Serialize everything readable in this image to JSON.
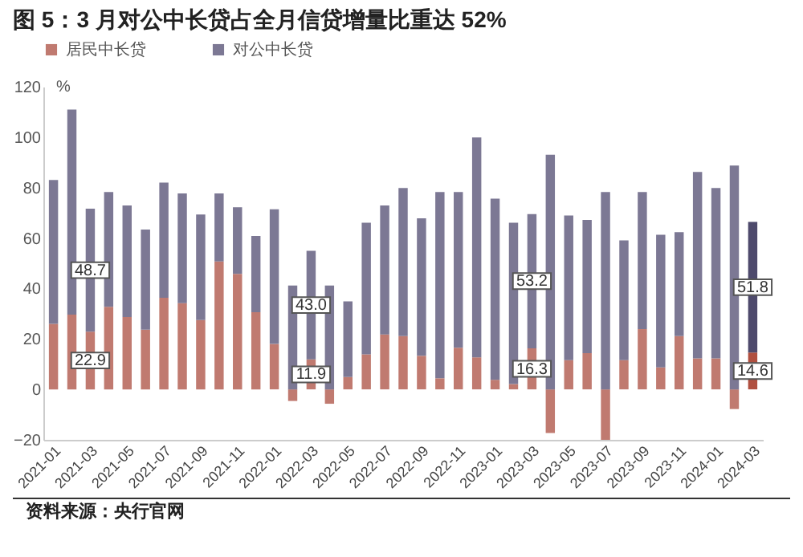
{
  "chart_data": {
    "type": "bar",
    "title": "图 5：3 月对公中长贷占全月信贷增量比重达 52%",
    "ylabel": "%",
    "categories": [
      "2021-01",
      null,
      "2021-03",
      null,
      "2021-05",
      null,
      "2021-07",
      null,
      "2021-09",
      null,
      "2021-11",
      null,
      "2022-01",
      null,
      "2022-03",
      null,
      "2022-05",
      null,
      "2022-07",
      null,
      "2022-09",
      null,
      "2022-11",
      null,
      "2023-01",
      null,
      "2023-03",
      null,
      "2023-05",
      null,
      "2023-07",
      null,
      "2023-09",
      null,
      "2023-11",
      null,
      "2024-01",
      null,
      "2024-03"
    ],
    "stacked": true,
    "series": [
      {
        "name": "居民中长贷",
        "color": "#c07a70",
        "colors": [
          "#c07a70",
          "#c07a70",
          "#c07a70",
          "#c07a70",
          "#c07a70",
          "#c07a70",
          "#c07a70",
          "#c07a70",
          "#c07a70",
          "#c07a70",
          "#c07a70",
          "#c07a70",
          "#c07a70",
          "#c07a70",
          "#c07a70",
          "#c07a70",
          "#c07a70",
          "#c07a70",
          "#c07a70",
          "#c07a70",
          "#c07a70",
          "#c07a70",
          "#c07a70",
          "#c07a70",
          "#c07a70",
          "#c07a70",
          "#c07a70",
          "#c07a70",
          "#c07a70",
          "#c07a70",
          "#c07a70",
          "#c07a70",
          "#c07a70",
          "#c07a70",
          "#c07a70",
          "#c07a70",
          "#c07a70",
          "#c07a70",
          "#b05040"
        ],
        "values": [
          26.0,
          29.6,
          22.9,
          32.7,
          28.7,
          23.7,
          36.3,
          34.2,
          27.5,
          50.7,
          45.8,
          30.6,
          18.0,
          -4.6,
          11.9,
          -5.7,
          4.9,
          13.9,
          21.8,
          21.1,
          13.3,
          4.4,
          16.5,
          12.7,
          3.8,
          2.1,
          16.3,
          -17.3,
          11.6,
          14.4,
          -20.0,
          11.6,
          23.9,
          8.7,
          21.1,
          12.3,
          12.3,
          -7.8,
          14.6
        ],
        "value_labels": [
          null,
          null,
          "22.9",
          null,
          null,
          null,
          null,
          null,
          null,
          null,
          null,
          null,
          null,
          null,
          "11.9",
          null,
          null,
          null,
          null,
          null,
          null,
          null,
          null,
          null,
          null,
          null,
          "16.3",
          null,
          null,
          null,
          null,
          null,
          null,
          null,
          null,
          null,
          null,
          null,
          "14.6"
        ]
      },
      {
        "name": "对公中长贷",
        "color": "#7c7894",
        "colors": [
          "#7c7894",
          "#7c7894",
          "#7c7894",
          "#7c7894",
          "#7c7894",
          "#7c7894",
          "#7c7894",
          "#7c7894",
          "#7c7894",
          "#7c7894",
          "#7c7894",
          "#7c7894",
          "#7c7894",
          "#7c7894",
          "#7c7894",
          "#7c7894",
          "#7c7894",
          "#7c7894",
          "#7c7894",
          "#7c7894",
          "#7c7894",
          "#7c7894",
          "#7c7894",
          "#7c7894",
          "#7c7894",
          "#7c7894",
          "#7c7894",
          "#7c7894",
          "#7c7894",
          "#7c7894",
          "#7c7894",
          "#7c7894",
          "#7c7894",
          "#7c7894",
          "#7c7894",
          "#7c7894",
          "#7c7894",
          "#7c7894",
          "#4e4a6c"
        ],
        "values": [
          57.0,
          81.3,
          48.7,
          45.5,
          44.2,
          39.7,
          45.7,
          43.5,
          41.8,
          27.0,
          26.4,
          30.2,
          53.4,
          41.2,
          43.0,
          41.2,
          30.0,
          52.2,
          51.1,
          58.7,
          54.5,
          73.8,
          61.7,
          87.2,
          71.8,
          64.0,
          53.2,
          93.0,
          57.3,
          52.8,
          78.2,
          47.5,
          54.3,
          52.6,
          41.2,
          73.9,
          67.5,
          88.7,
          51.8
        ],
        "value_labels": [
          null,
          null,
          "48.7",
          null,
          null,
          null,
          null,
          null,
          null,
          null,
          null,
          null,
          null,
          null,
          "43.0",
          null,
          null,
          null,
          null,
          null,
          null,
          null,
          null,
          null,
          null,
          null,
          "53.2",
          null,
          null,
          null,
          null,
          null,
          null,
          null,
          null,
          null,
          null,
          null,
          "51.8"
        ]
      }
    ],
    "ylim": [
      -20,
      120
    ],
    "yticks": [
      -20,
      0,
      20,
      40,
      60,
      80,
      100,
      120
    ],
    "grid": false,
    "legend": "top",
    "annotations": [
      "资料来源：央行官网"
    ]
  }
}
